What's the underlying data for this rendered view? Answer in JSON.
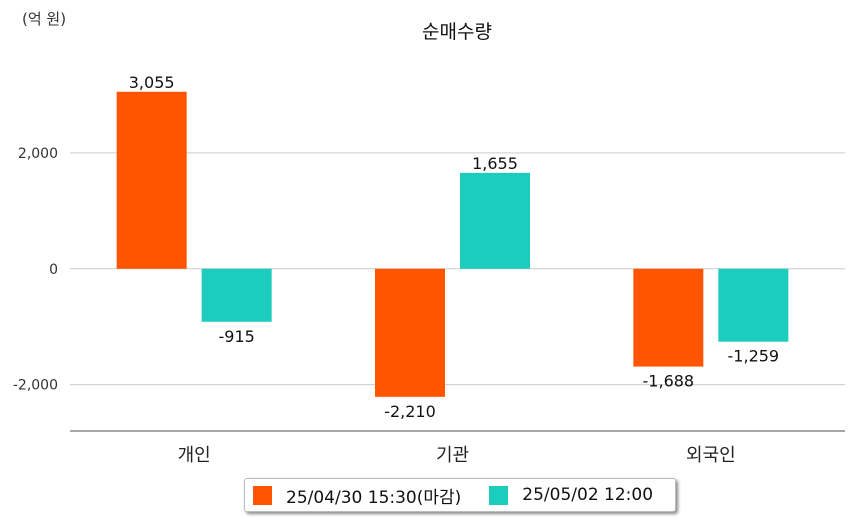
{
  "chart_data": {
    "type": "bar",
    "title": "순매수량",
    "unit_label": "(억 원)",
    "categories": [
      "개인",
      "기관",
      "외국인"
    ],
    "series": [
      {
        "name": "25/04/30 15:30(마감)",
        "color": "#ff5500",
        "values": [
          3055,
          -2210,
          -1688
        ],
        "labels": [
          "3,055",
          "-2,210",
          "-1,688"
        ]
      },
      {
        "name": "25/05/02 12:00",
        "color": "#1ccdbd",
        "values": [
          -915,
          1655,
          -1259
        ],
        "labels": [
          "-915",
          "1,655",
          "-1,259"
        ]
      }
    ],
    "yticks": [
      2000,
      0,
      -2000
    ],
    "ytick_labels": [
      "2,000",
      "0",
      "-2,000"
    ],
    "ylim": [
      -2800,
      4000
    ],
    "grid": true,
    "legend": "bottom"
  }
}
